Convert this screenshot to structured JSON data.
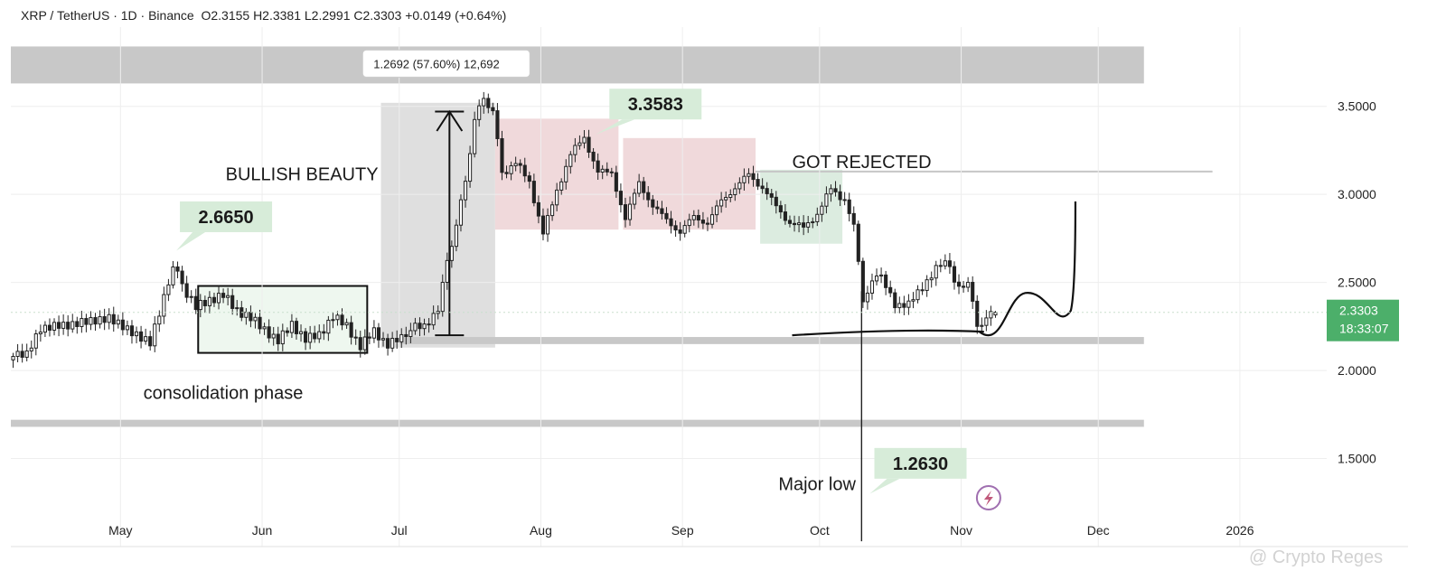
{
  "header": {
    "symbol": "XRP / TetherUS · 1D · Binance",
    "ohlc": "O2.3155  H2.3381  L2.2991  C2.3303  +0.0149 (+0.64%)"
  },
  "watermark": "@ Crypto Reges",
  "colors": {
    "up": "#222222",
    "down": "#222222",
    "price_tag": "#4caf6a",
    "label_bg": "#d7ecd9",
    "rejection_zone": "#f0d9db",
    "accumulation_zone": "#dcece0",
    "support_band": "#c8c8c8"
  },
  "chart_data": {
    "type": "candlestick",
    "x_range": [
      "2025-04-07",
      "2026-01-20"
    ],
    "ylim": [
      1.0,
      3.95
    ],
    "y_ticks": [
      "1.5000",
      "2.0000",
      "2.5000",
      "3.0000",
      "3.5000"
    ],
    "x_ticks": [
      {
        "date": "2025-05-01",
        "label": "May"
      },
      {
        "date": "2025-06-01",
        "label": "Jun"
      },
      {
        "date": "2025-07-01",
        "label": "Jul"
      },
      {
        "date": "2025-08-01",
        "label": "Aug"
      },
      {
        "date": "2025-09-01",
        "label": "Sep"
      },
      {
        "date": "2025-10-01",
        "label": "Oct"
      },
      {
        "date": "2025-11-01",
        "label": "Nov"
      },
      {
        "date": "2025-12-01",
        "label": "Dec"
      },
      {
        "date": "2026-01-01",
        "label": "2026"
      }
    ],
    "last_price": {
      "value": 2.3303,
      "label": "2.3303",
      "countdown": "18:33:07"
    },
    "series": [
      {
        "date": "2025-04-07",
        "close": 2.08
      },
      {
        "date": "2025-04-10",
        "close": 2.11
      },
      {
        "date": "2025-04-13",
        "close": 2.22
      },
      {
        "date": "2025-04-16",
        "close": 2.27
      },
      {
        "date": "2025-04-19",
        "close": 2.24
      },
      {
        "date": "2025-04-22",
        "close": 2.29
      },
      {
        "date": "2025-04-25",
        "close": 2.27
      },
      {
        "date": "2025-04-28",
        "close": 2.31
      },
      {
        "date": "2025-05-01",
        "close": 2.24
      },
      {
        "date": "2025-05-04",
        "close": 2.21
      },
      {
        "date": "2025-05-07",
        "close": 2.15
      },
      {
        "date": "2025-05-10",
        "close": 2.42
      },
      {
        "date": "2025-05-12",
        "close": 2.6
      },
      {
        "date": "2025-05-14",
        "close": 2.48
      },
      {
        "date": "2025-05-17",
        "close": 2.36
      },
      {
        "date": "2025-05-20",
        "close": 2.4
      },
      {
        "date": "2025-05-23",
        "close": 2.43
      },
      {
        "date": "2025-05-26",
        "close": 2.34
      },
      {
        "date": "2025-05-29",
        "close": 2.3
      },
      {
        "date": "2025-06-01",
        "close": 2.23
      },
      {
        "date": "2025-06-04",
        "close": 2.17
      },
      {
        "date": "2025-06-07",
        "close": 2.26
      },
      {
        "date": "2025-06-10",
        "close": 2.18
      },
      {
        "date": "2025-06-13",
        "close": 2.2
      },
      {
        "date": "2025-06-16",
        "close": 2.31
      },
      {
        "date": "2025-06-19",
        "close": 2.25
      },
      {
        "date": "2025-06-22",
        "close": 2.14
      },
      {
        "date": "2025-06-25",
        "close": 2.22
      },
      {
        "date": "2025-06-28",
        "close": 2.15
      },
      {
        "date": "2025-07-01",
        "close": 2.18
      },
      {
        "date": "2025-07-03",
        "close": 2.25
      },
      {
        "date": "2025-07-06",
        "close": 2.24
      },
      {
        "date": "2025-07-09",
        "close": 2.36
      },
      {
        "date": "2025-07-11",
        "close": 2.6
      },
      {
        "date": "2025-07-13",
        "close": 2.85
      },
      {
        "date": "2025-07-15",
        "close": 3.05
      },
      {
        "date": "2025-07-17",
        "close": 3.45
      },
      {
        "date": "2025-07-19",
        "close": 3.52
      },
      {
        "date": "2025-07-21",
        "close": 3.5
      },
      {
        "date": "2025-07-23",
        "close": 3.1
      },
      {
        "date": "2025-07-26",
        "close": 3.2
      },
      {
        "date": "2025-07-29",
        "close": 3.05
      },
      {
        "date": "2025-08-01",
        "close": 2.8
      },
      {
        "date": "2025-08-04",
        "close": 3.0
      },
      {
        "date": "2025-08-07",
        "close": 3.25
      },
      {
        "date": "2025-08-10",
        "close": 3.3
      },
      {
        "date": "2025-08-13",
        "close": 3.15
      },
      {
        "date": "2025-08-16",
        "close": 3.1
      },
      {
        "date": "2025-08-19",
        "close": 2.88
      },
      {
        "date": "2025-08-22",
        "close": 3.05
      },
      {
        "date": "2025-08-25",
        "close": 2.95
      },
      {
        "date": "2025-08-28",
        "close": 2.84
      },
      {
        "date": "2025-08-31",
        "close": 2.8
      },
      {
        "date": "2025-09-03",
        "close": 2.86
      },
      {
        "date": "2025-09-06",
        "close": 2.85
      },
      {
        "date": "2025-09-09",
        "close": 2.95
      },
      {
        "date": "2025-09-12",
        "close": 3.05
      },
      {
        "date": "2025-09-15",
        "close": 3.1
      },
      {
        "date": "2025-09-18",
        "close": 3.05
      },
      {
        "date": "2025-09-21",
        "close": 2.92
      },
      {
        "date": "2025-09-24",
        "close": 2.85
      },
      {
        "date": "2025-09-27",
        "close": 2.8
      },
      {
        "date": "2025-09-30",
        "close": 2.9
      },
      {
        "date": "2025-10-03",
        "close": 3.02
      },
      {
        "date": "2025-10-06",
        "close": 2.98
      },
      {
        "date": "2025-10-08",
        "close": 2.82
      },
      {
        "date": "2025-10-10",
        "close": 2.4
      },
      {
        "date": "2025-10-12",
        "close": 2.5
      },
      {
        "date": "2025-10-14",
        "close": 2.55
      },
      {
        "date": "2025-10-17",
        "close": 2.35
      },
      {
        "date": "2025-10-20",
        "close": 2.4
      },
      {
        "date": "2025-10-23",
        "close": 2.45
      },
      {
        "date": "2025-10-26",
        "close": 2.6
      },
      {
        "date": "2025-10-28",
        "close": 2.62
      },
      {
        "date": "2025-10-31",
        "close": 2.48
      },
      {
        "date": "2025-11-02",
        "close": 2.5
      },
      {
        "date": "2025-11-04",
        "close": 2.25
      },
      {
        "date": "2025-11-06",
        "close": 2.3
      },
      {
        "date": "2025-11-08",
        "close": 2.3303
      }
    ],
    "annotations": {
      "callout_2665": "2.6650",
      "callout_3358": "3.3583",
      "callout_1263": "1.2630",
      "bullish_beauty": "BULLISH BEAUTY",
      "consolidation": "consolidation phase",
      "got_rejected": "GOT REJECTED",
      "major_low": "Major low",
      "measure": "1.2692 (57.60%) 12,692"
    }
  }
}
